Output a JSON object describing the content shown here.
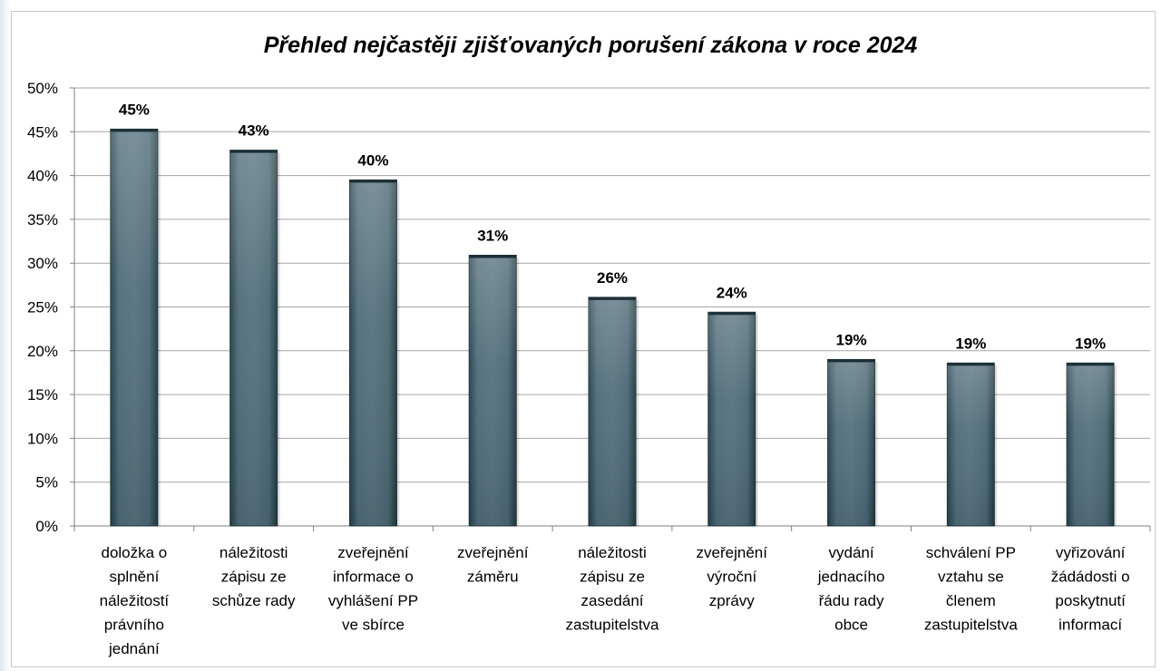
{
  "chart_data": {
    "type": "bar",
    "title": "Přehled nejčastěji zjišťovaných porušení zákona v roce 2024",
    "xlabel": "",
    "ylabel": "",
    "ylim": [
      0,
      50
    ],
    "y_tick_step": 5,
    "y_ticks": [
      "0%",
      "5%",
      "10%",
      "15%",
      "20%",
      "25%",
      "30%",
      "35%",
      "40%",
      "45%",
      "50%"
    ],
    "grid": true,
    "legend": "none",
    "bar_color": "#3f5f6d",
    "categories": [
      [
        "doložka o",
        "splnění",
        "náležitostí",
        "právního",
        "jednání"
      ],
      [
        "náležitosti",
        "zápisu ze",
        "schůze rady"
      ],
      [
        "zveřejnění",
        "informace o",
        "vyhlášení PP",
        "ve sbírce"
      ],
      [
        "zveřejnění",
        "záměru"
      ],
      [
        "náležitosti",
        "zápisu ze",
        "zasedání",
        "zastupitelstva"
      ],
      [
        "zveřejnění",
        "výroční",
        "zprávy"
      ],
      [
        "vydání",
        "jednacího",
        "řádu rady",
        "obce"
      ],
      [
        "schválení PP",
        "vztahu se",
        "členem",
        "zastupitelstva"
      ],
      [
        "vyřizování",
        "žádádosti o",
        "poskytnutí",
        "informací"
      ]
    ],
    "values": [
      45.3,
      42.9,
      39.5,
      30.9,
      26.1,
      24.4,
      19.0,
      18.6,
      18.6
    ],
    "data_labels": [
      "45%",
      "43%",
      "40%",
      "31%",
      "26%",
      "24%",
      "19%",
      "19%",
      "19%"
    ]
  }
}
